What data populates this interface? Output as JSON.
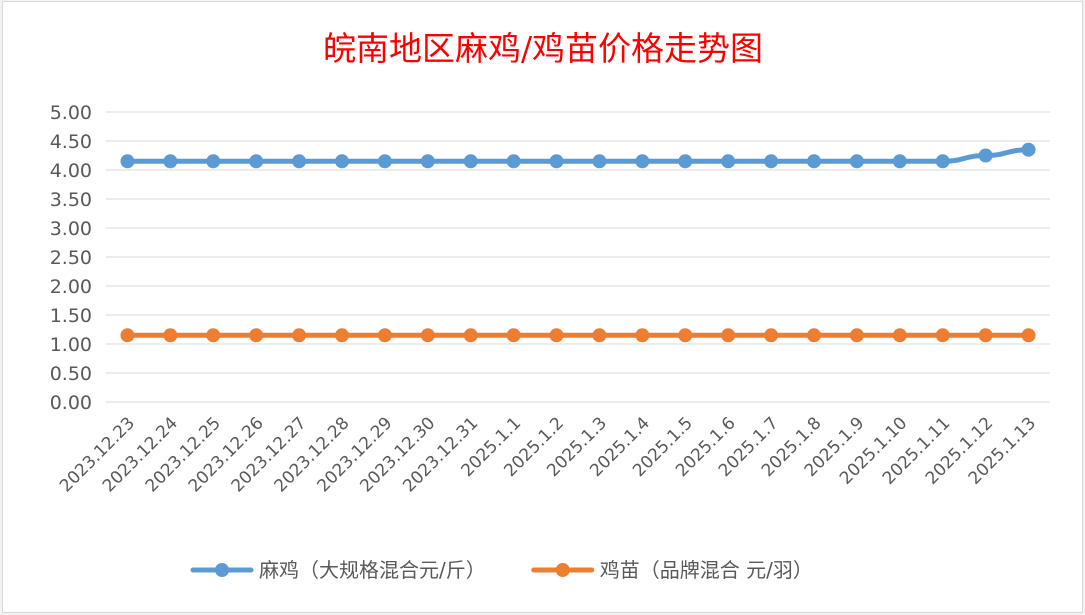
{
  "chart_data": {
    "type": "line",
    "title": "皖南地区麻鸡/鸡苗价格走势图",
    "xlabel": "",
    "ylabel": "",
    "ylim": [
      0,
      5
    ],
    "y_ticks": [
      "0.00",
      "0.50",
      "1.00",
      "1.50",
      "2.00",
      "2.50",
      "3.00",
      "3.50",
      "4.00",
      "4.50",
      "5.00"
    ],
    "grid": true,
    "legend_position": "bottom",
    "categories": [
      "2023.12.23",
      "2023.12.24",
      "2023.12.25",
      "2023.12.26",
      "2023.12.27",
      "2023.12.28",
      "2023.12.29",
      "2023.12.30",
      "2023.12.31",
      "2025.1.1",
      "2025.1.2",
      "2025.1.3",
      "2025.1.4",
      "2025.1.5",
      "2025.1.6",
      "2025.1.7",
      "2025.1.8",
      "2025.1.9",
      "2025.1.10",
      "2025.1.11",
      "2025.1.12",
      "2025.1.13"
    ],
    "series": [
      {
        "name": "麻鸡（大规格混合元/斤）",
        "color": "#5b9bd5",
        "values": [
          4.15,
          4.15,
          4.15,
          4.15,
          4.15,
          4.15,
          4.15,
          4.15,
          4.15,
          4.15,
          4.15,
          4.15,
          4.15,
          4.15,
          4.15,
          4.15,
          4.15,
          4.15,
          4.15,
          4.15,
          4.25,
          4.35
        ]
      },
      {
        "name": "鸡苗（品牌混合 元/羽）",
        "color": "#ed7d31",
        "values": [
          1.15,
          1.15,
          1.15,
          1.15,
          1.15,
          1.15,
          1.15,
          1.15,
          1.15,
          1.15,
          1.15,
          1.15,
          1.15,
          1.15,
          1.15,
          1.15,
          1.15,
          1.15,
          1.15,
          1.15,
          1.15,
          1.15
        ]
      }
    ]
  }
}
